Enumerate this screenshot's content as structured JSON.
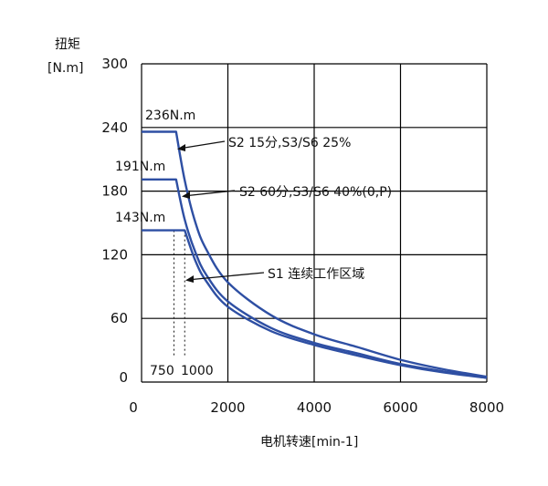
{
  "chart_data": {
    "type": "line",
    "xlabel": "电机转速[min-1]",
    "ylabel": "扭矩",
    "ylabel_unit": "[N.m]",
    "xlim": [
      0,
      8000
    ],
    "ylim": [
      0,
      300
    ],
    "x_ticks": [
      "0",
      "2000",
      "4000",
      "6000",
      "8000"
    ],
    "y_ticks": [
      "0",
      "60",
      "120",
      "180",
      "240",
      "300"
    ],
    "grid": true,
    "series": [
      {
        "name": "S2 15分,S3/S6 25%",
        "points": [
          [
            0,
            236
          ],
          [
            800,
            236
          ],
          [
            1000,
            190
          ],
          [
            1250,
            150
          ],
          [
            1500,
            125
          ],
          [
            2000,
            94
          ],
          [
            3000,
            63
          ],
          [
            4000,
            45
          ],
          [
            5000,
            33
          ],
          [
            6000,
            21
          ],
          [
            7000,
            12
          ],
          [
            8000,
            5
          ]
        ]
      },
      {
        "name": "S2 60分,S3/S6 40%(0,P)",
        "points": [
          [
            0,
            191
          ],
          [
            800,
            191
          ],
          [
            1000,
            153
          ],
          [
            1250,
            122
          ],
          [
            1500,
            101
          ],
          [
            2000,
            76
          ],
          [
            3000,
            51
          ],
          [
            4000,
            37
          ],
          [
            5000,
            27
          ],
          [
            6000,
            17
          ],
          [
            7000,
            10
          ],
          [
            8000,
            4
          ]
        ]
      },
      {
        "name": "S1 连续工作区域",
        "points": [
          [
            0,
            143
          ],
          [
            1000,
            143
          ],
          [
            1250,
            114
          ],
          [
            1500,
            95
          ],
          [
            2000,
            71
          ],
          [
            3000,
            48
          ],
          [
            4000,
            35
          ],
          [
            5000,
            25
          ],
          [
            6000,
            16
          ],
          [
            7000,
            9
          ],
          [
            8000,
            4
          ]
        ]
      }
    ],
    "value_labels": [
      "236N.m",
      "191N.m",
      "143N.m"
    ],
    "speed_markers": [
      750,
      1000
    ],
    "speed_marker_labels": [
      "750",
      "1000"
    ]
  },
  "colors": {
    "curve": "#2e4fa3",
    "grid": "#000000",
    "text": "#111111"
  }
}
